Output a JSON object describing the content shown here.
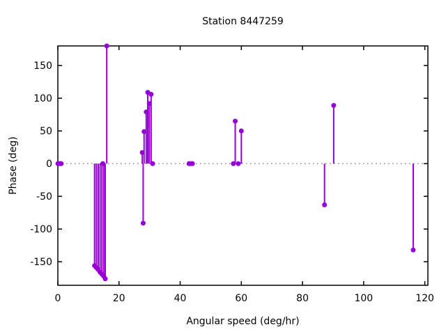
{
  "colors": {
    "series": "#9400D3",
    "border": "#000000",
    "zero_line": "#888888",
    "background": "#FFFFFF",
    "text": "#000000"
  },
  "chart_data": {
    "type": "scatter",
    "style": "impulse-stems-with-points",
    "title": "Station 8447259",
    "xlabel": "Angular speed (deg/hr)",
    "ylabel": "Phase (deg)",
    "xlim": [
      0,
      121
    ],
    "ylim": [
      -186,
      180
    ],
    "xticks": [
      0,
      20,
      40,
      60,
      80,
      100,
      120
    ],
    "yticks": [
      -150,
      -100,
      -50,
      0,
      50,
      100,
      150
    ],
    "grid": false,
    "zero_line": true,
    "legend": "none",
    "points": [
      [
        0.04,
        0
      ],
      [
        0.08,
        0
      ],
      [
        0.54,
        0
      ],
      [
        1.02,
        0
      ],
      [
        1.1,
        0
      ],
      [
        12.0,
        -156
      ],
      [
        12.6,
        -159
      ],
      [
        13.2,
        -162
      ],
      [
        13.8,
        -166
      ],
      [
        14.4,
        -169
      ],
      [
        14.7,
        0
      ],
      [
        15.0,
        -172
      ],
      [
        15.5,
        -176
      ],
      [
        16.0,
        180
      ],
      [
        27.6,
        17
      ],
      [
        27.9,
        -91
      ],
      [
        28.2,
        49
      ],
      [
        28.9,
        79
      ],
      [
        29.4,
        109
      ],
      [
        29.9,
        92
      ],
      [
        30.5,
        106
      ],
      [
        31.0,
        0
      ],
      [
        42.9,
        0
      ],
      [
        43.5,
        0
      ],
      [
        44.0,
        0
      ],
      [
        57.4,
        0
      ],
      [
        58.0,
        65
      ],
      [
        59.0,
        0
      ],
      [
        60.0,
        50
      ],
      [
        87.2,
        -63
      ],
      [
        90.2,
        89
      ],
      [
        116.2,
        -132
      ]
    ]
  }
}
